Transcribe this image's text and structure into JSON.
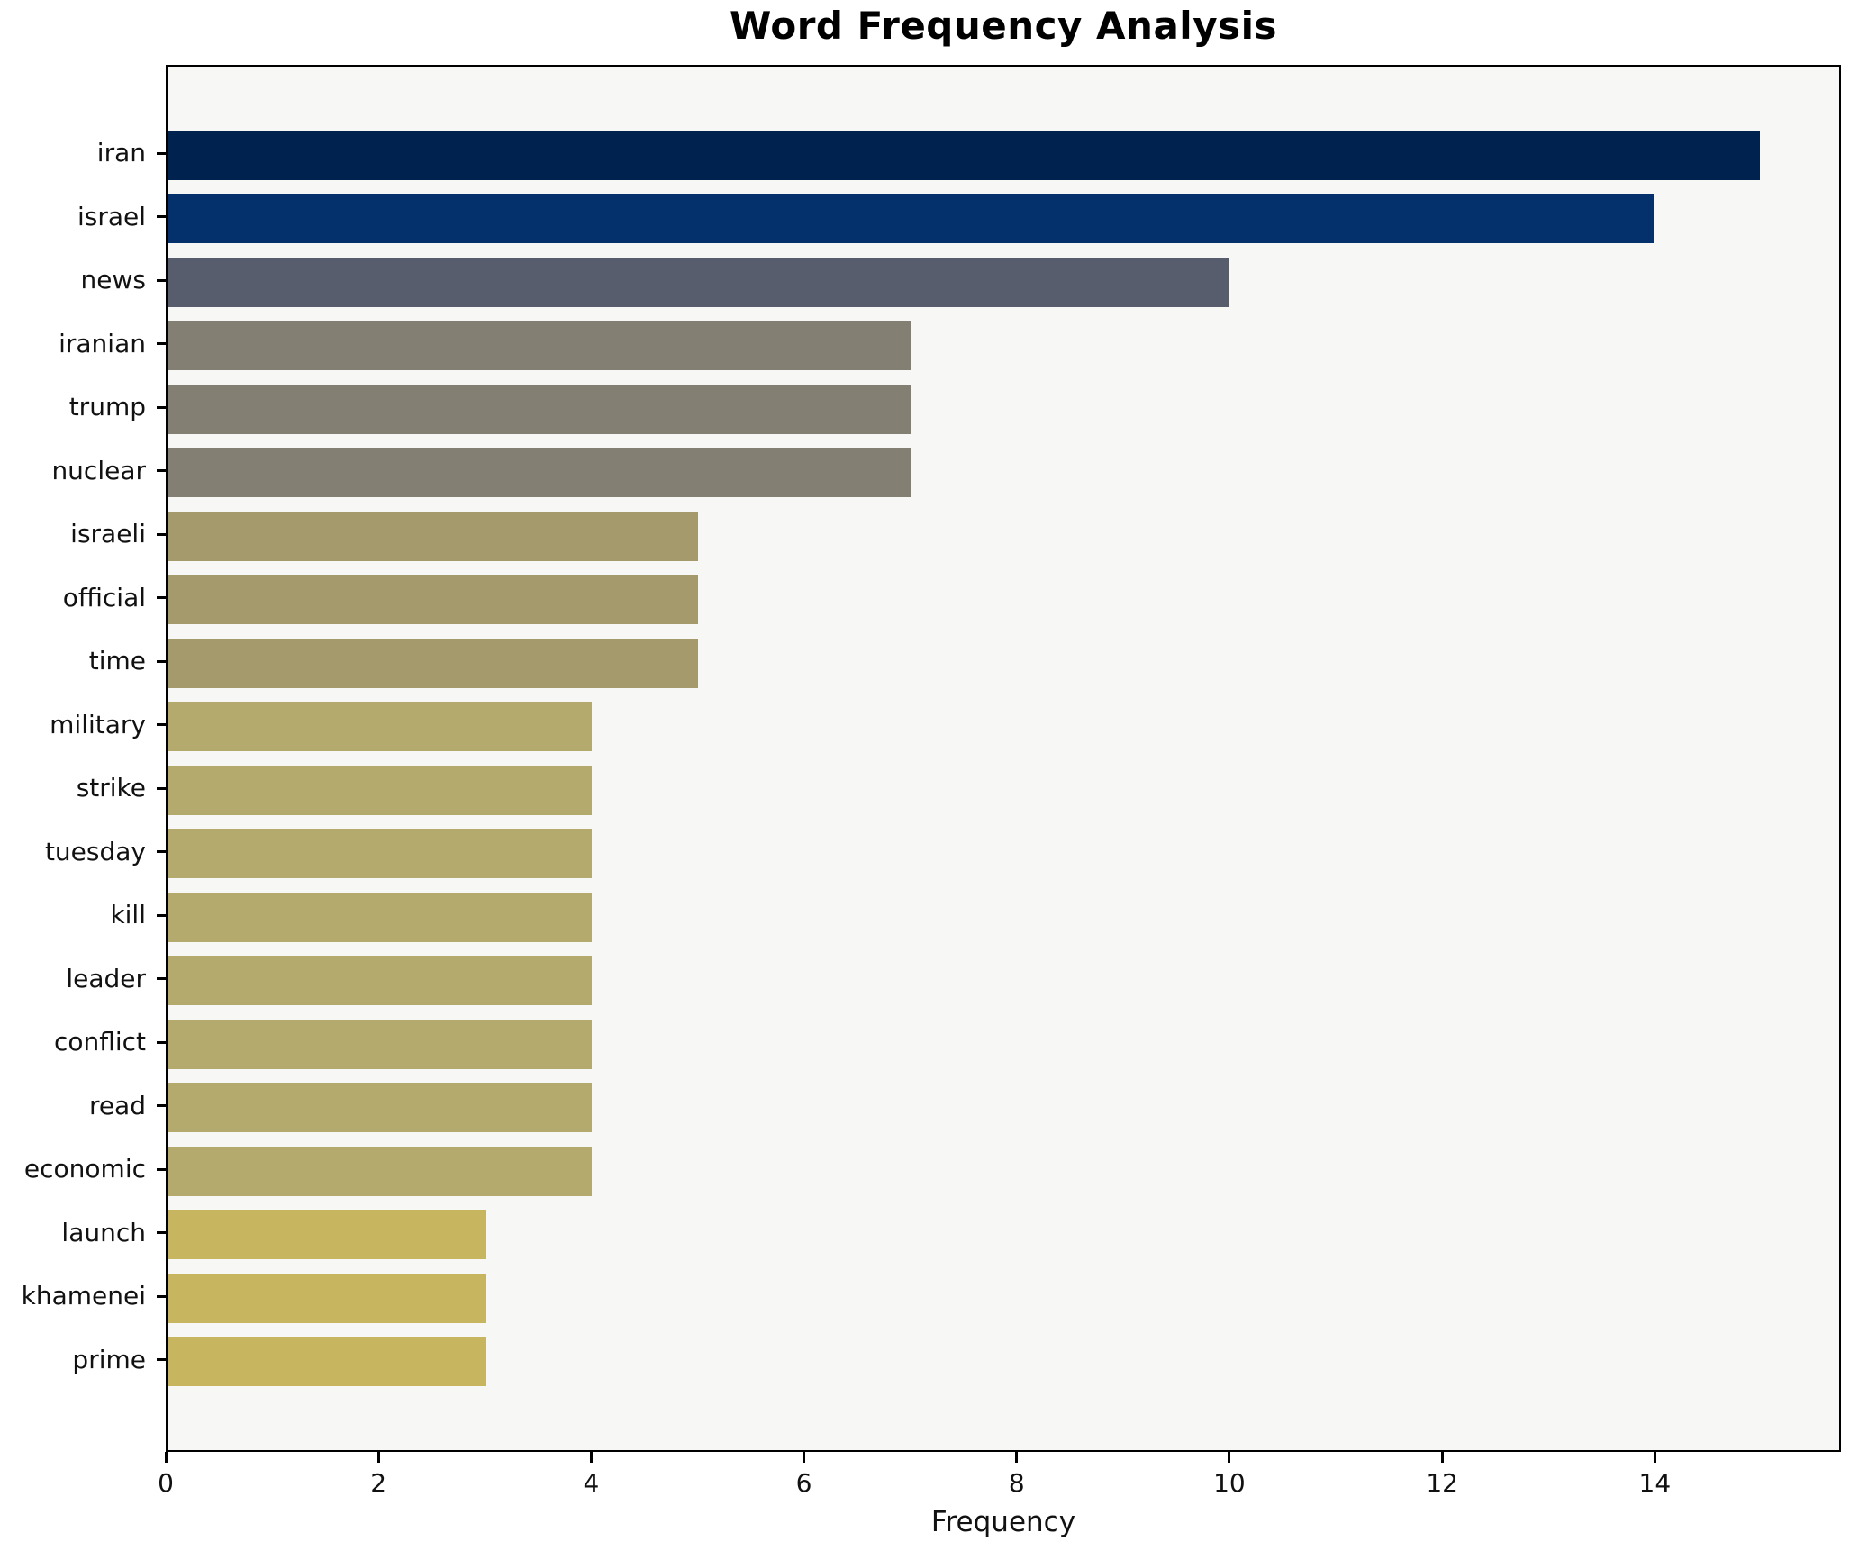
{
  "chart_data": {
    "type": "bar",
    "orientation": "horizontal",
    "title": "Word Frequency Analysis",
    "xlabel": "Frequency",
    "ylabel": "",
    "categories": [
      "iran",
      "israel",
      "news",
      "iranian",
      "trump",
      "nuclear",
      "israeli",
      "official",
      "time",
      "military",
      "strike",
      "tuesday",
      "kill",
      "leader",
      "conflict",
      "read",
      "economic",
      "launch",
      "khamenei",
      "prime"
    ],
    "values": [
      15,
      14,
      10,
      7,
      7,
      7,
      5,
      5,
      5,
      4,
      4,
      4,
      4,
      4,
      4,
      4,
      4,
      3,
      3,
      3
    ],
    "bar_colors": [
      "#00224e",
      "#04306b",
      "#575d6d",
      "#838073",
      "#838073",
      "#838073",
      "#a49a6c",
      "#a49a6c",
      "#a49a6c",
      "#b5aa6d",
      "#b5aa6d",
      "#b5aa6d",
      "#b5aa6d",
      "#b5aa6d",
      "#b5aa6d",
      "#b5aa6d",
      "#b5aa6d",
      "#c8b55f",
      "#c8b55f",
      "#c8b55f"
    ],
    "xticks": [
      0,
      2,
      4,
      6,
      8,
      10,
      12,
      14
    ],
    "xlim": [
      0,
      15.75
    ],
    "grid": false,
    "legend": false,
    "plot_background": "#f7f7f6",
    "figure_background": "#ffffff"
  }
}
